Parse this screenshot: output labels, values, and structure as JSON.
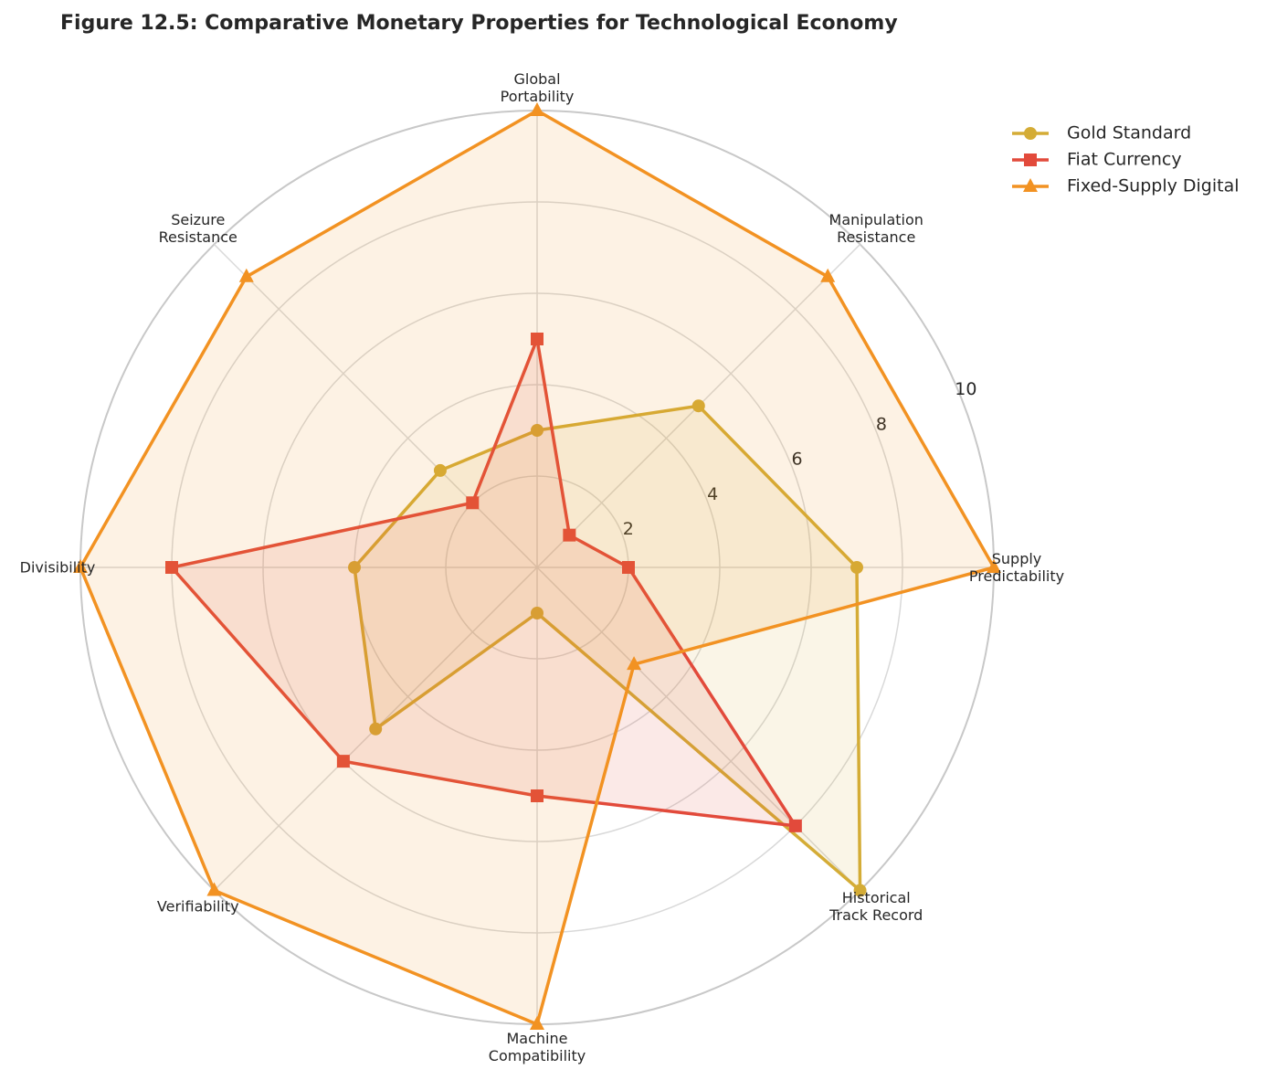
{
  "chart_data": {
    "type": "radar",
    "title": "Figure 12.5: Comparative Monetary Properties for Technological Economy",
    "categories": [
      "Global\nPortability",
      "Manipulation\nResistance",
      "Supply\nPredictability",
      "Historical\nTrack Record",
      "Machine\nCompatibility",
      "Verifiability",
      "Divisibility",
      "Seizure\nResistance"
    ],
    "series": [
      {
        "name": "Gold Standard",
        "color": "#d4ac36",
        "marker": "circle",
        "values": [
          3,
          5,
          7,
          10,
          1,
          5,
          4,
          3
        ]
      },
      {
        "name": "Fiat Currency",
        "color": "#e24a3b",
        "marker": "square",
        "values": [
          5,
          1,
          2,
          8,
          5,
          6,
          8,
          2
        ]
      },
      {
        "name": "Fixed-Supply Digital",
        "color": "#f29222",
        "marker": "triangle",
        "values": [
          10,
          9,
          10,
          3,
          10,
          10,
          10,
          9
        ]
      }
    ],
    "ylim": [
      0,
      10
    ],
    "yticks": [
      2,
      4,
      6,
      8,
      10
    ],
    "grid": true,
    "legend": "upper right"
  }
}
